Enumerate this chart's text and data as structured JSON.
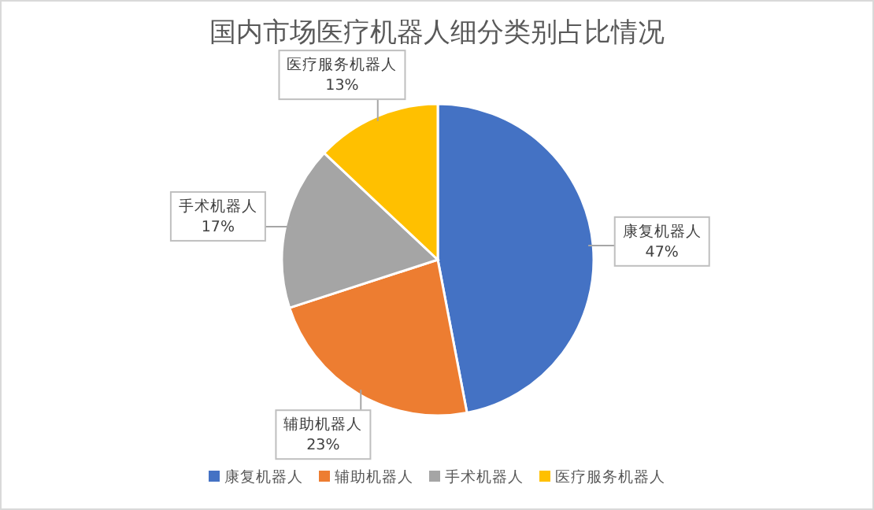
{
  "chart_data": {
    "type": "pie",
    "title": "国内市场医疗机器人细分类别占比情况",
    "categories": [
      "康复机器人",
      "辅助机器人",
      "手术机器人",
      "医疗服务机器人"
    ],
    "values": [
      47,
      23,
      17,
      13
    ],
    "value_labels": [
      "47%",
      "23%",
      "17%",
      "13%"
    ],
    "colors": [
      "#4472c4",
      "#ed7d31",
      "#a5a5a5",
      "#ffc000"
    ],
    "legend": "bottom"
  }
}
